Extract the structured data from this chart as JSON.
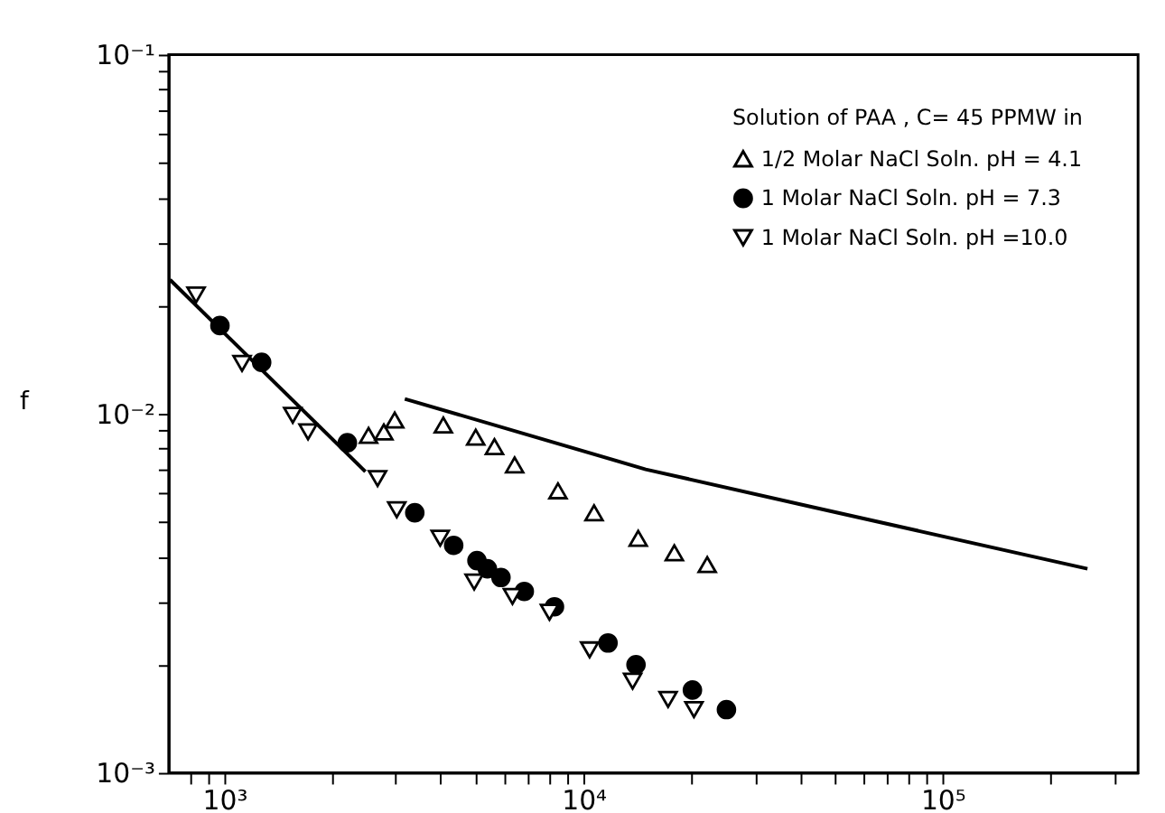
{
  "chart_data": {
    "type": "scatter",
    "ylabel": "f",
    "legend_title": "Solution of PAA , C= 45 PPMW in",
    "legend": "top right",
    "grid": false,
    "log": "xy",
    "xlim": [
      700,
      350000
    ],
    "ylim": [
      0.001,
      0.1
    ],
    "xticks": [
      {
        "value": 800,
        "label": null
      },
      {
        "value": 900,
        "label": null
      },
      {
        "value": 1000,
        "label": "10³"
      },
      {
        "value": 2000,
        "label": null
      },
      {
        "value": 3000,
        "label": null
      },
      {
        "value": 4000,
        "label": null
      },
      {
        "value": 5000,
        "label": null
      },
      {
        "value": 6000,
        "label": null
      },
      {
        "value": 7000,
        "label": null
      },
      {
        "value": 8000,
        "label": null
      },
      {
        "value": 9000,
        "label": null
      },
      {
        "value": 10000,
        "label": "10⁴"
      },
      {
        "value": 20000,
        "label": null
      },
      {
        "value": 30000,
        "label": null
      },
      {
        "value": 40000,
        "label": null
      },
      {
        "value": 50000,
        "label": null
      },
      {
        "value": 60000,
        "label": null
      },
      {
        "value": 70000,
        "label": null
      },
      {
        "value": 80000,
        "label": null
      },
      {
        "value": 90000,
        "label": null
      },
      {
        "value": 100000,
        "label": "10⁵"
      },
      {
        "value": 200000,
        "label": null
      },
      {
        "value": 300000,
        "label": null
      }
    ],
    "yticks": [
      {
        "value": 0.001,
        "label": "10⁻³"
      },
      {
        "value": 0.002,
        "label": null
      },
      {
        "value": 0.003,
        "label": null
      },
      {
        "value": 0.004,
        "label": null
      },
      {
        "value": 0.005,
        "label": null
      },
      {
        "value": 0.006,
        "label": null
      },
      {
        "value": 0.007,
        "label": null
      },
      {
        "value": 0.008,
        "label": null
      },
      {
        "value": 0.009,
        "label": null
      },
      {
        "value": 0.01,
        "label": "10⁻²"
      },
      {
        "value": 0.02,
        "label": null
      },
      {
        "value": 0.03,
        "label": null
      },
      {
        "value": 0.04,
        "label": null
      },
      {
        "value": 0.05,
        "label": null
      },
      {
        "value": 0.06,
        "label": null
      },
      {
        "value": 0.07,
        "label": null
      },
      {
        "value": 0.08,
        "label": null
      },
      {
        "value": 0.09,
        "label": null
      },
      {
        "value": 0.1,
        "label": "10⁻¹"
      }
    ],
    "series": [
      {
        "name": "1/2 Molar NaCl Soln. pH = 4.1",
        "marker": "triangle",
        "color": "#000000",
        "x": [
          2520,
          2780,
          2980,
          4070,
          5010,
          5650,
          6430,
          8490,
          10700,
          14200,
          17900,
          22100
        ],
        "values": [
          0.0087,
          0.0089,
          0.0096,
          0.0093,
          0.0086,
          0.0081,
          0.0072,
          0.0061,
          0.0053,
          0.0045,
          0.0041,
          0.0038
        ]
      },
      {
        "name": "1 Molar NaCl Soln. pH = 7.3",
        "marker": "circle",
        "color": "#000000",
        "x": [
          972,
          1270,
          2200,
          3390,
          4350,
          5050,
          5400,
          5890,
          6840,
          8300,
          11700,
          14000,
          20100,
          25000
        ],
        "values": [
          0.0176,
          0.0139,
          0.0083,
          0.0053,
          0.0043,
          0.0039,
          0.0037,
          0.0035,
          0.0032,
          0.0029,
          0.0023,
          0.002,
          0.0017,
          0.0015
        ]
      },
      {
        "name": "1 Molar NaCl Soln. pH =10.0",
        "marker": "triangle-down",
        "color": "#000000",
        "x": [
          834,
          1120,
          1550,
          1710,
          2670,
          3020,
          3990,
          4960,
          6340,
          8040,
          10400,
          13700,
          17200,
          20300
        ],
        "values": [
          0.0214,
          0.0138,
          0.0099,
          0.0089,
          0.0066,
          0.0054,
          0.0045,
          0.0034,
          0.0031,
          0.0028,
          0.0022,
          0.0018,
          0.0016,
          0.0015
        ]
      },
      {
        "type": "line",
        "marker": "none",
        "line_style": "solid",
        "color": "#000000",
        "x": [
          706,
          2470
        ],
        "values": [
          0.0236,
          0.0069
        ]
      },
      {
        "type": "line",
        "marker": "none",
        "line_style": "solid",
        "color": "#000000",
        "x": [
          3180,
          14900,
          43300,
          253000
        ],
        "values": [
          0.011,
          0.007,
          0.0055,
          0.0037
        ]
      }
    ]
  }
}
